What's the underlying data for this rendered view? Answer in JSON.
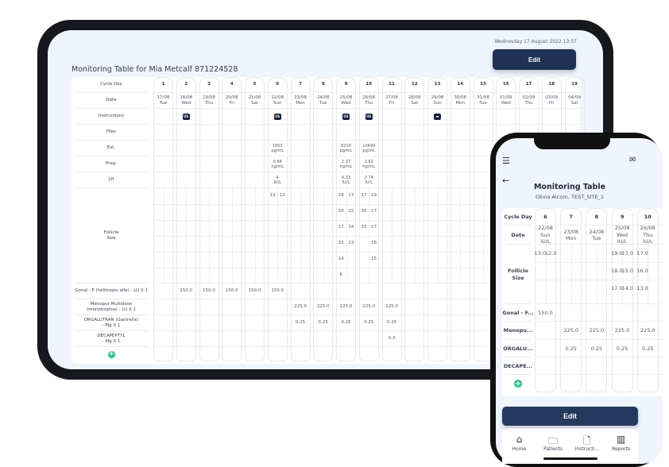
{
  "tablet": {
    "datetime": "Wednesday  17 August 2022  13:57",
    "title": "Monitoring Table for Mia Metcalf  871224528",
    "edit_label": "Edit",
    "row_labels": {
      "cycle": "Cycle Day",
      "date": "Date",
      "instructions": "Instructions",
      "files": "Files",
      "est": "Est.",
      "prog": "Prog.",
      "lh": "LH",
      "follicle": "Follicle\nSize",
      "gonal": "Gonal - F (follitropin alfa) - LU X 1",
      "menopur": "Menopur Multidose\n(menotropins) - LU X 1",
      "orgalutran": "ORGALUTRAN (Ganirelix)\n- Mg X 1",
      "decapeptyl": "DECAPEPTYL\n- Mg X 1"
    },
    "days": [
      {
        "day": "1",
        "date": "17/08",
        "dow": "Tue"
      },
      {
        "day": "2",
        "date": "18/08",
        "dow": "Wed",
        "instruction": "US",
        "gonal": "150.0"
      },
      {
        "day": "3",
        "date": "19/08",
        "dow": "Thu",
        "gonal": "150.0"
      },
      {
        "day": "4",
        "date": "20/08",
        "dow": "Fri",
        "gonal": "150.0"
      },
      {
        "day": "5",
        "date": "21/08",
        "dow": "Sat",
        "gonal": "150.0"
      },
      {
        "day": "6",
        "date": "22/08",
        "dow": "Sun",
        "instruction": "US",
        "est": "1853\npg/mL",
        "prog": "0.84\nng/mL",
        "lh": "4\nIU/L",
        "follicles": [
          [
            "13",
            "12"
          ]
        ],
        "gonal": "150.0"
      },
      {
        "day": "7",
        "date": "23/08",
        "dow": "Mon",
        "menopur": "225.0",
        "orgalutran": "0.25"
      },
      {
        "day": "8",
        "date": "24/08",
        "dow": "Tue",
        "menopur": "225.0",
        "orgalutran": "0.25"
      },
      {
        "day": "9",
        "date": "25/08",
        "dow": "Wed",
        "instruction": "US",
        "est": "6219\npg/mL",
        "prog": "2.37\nng/mL",
        "lh": "4.33\nIU/L",
        "follicles": [
          [
            "19",
            "17"
          ],
          [
            "18",
            "15"
          ],
          [
            "17",
            "14"
          ],
          [
            "15",
            "13"
          ],
          [
            "14",
            ""
          ],
          [
            "6",
            ""
          ]
        ],
        "menopur": "225.0",
        "orgalutran": "0.25"
      },
      {
        "day": "10",
        "date": "26/08",
        "dow": "Thu",
        "instruction": "US",
        "est": "10499\npg/mL",
        "prog": "2.62\nng/mL",
        "lh": "2.74\nIU/L",
        "follicles": [
          [
            "17",
            "19"
          ],
          [
            "16",
            "17"
          ],
          [
            "15",
            "17"
          ],
          [
            "",
            "16"
          ],
          [
            "",
            "15"
          ]
        ],
        "menopur": "225.0",
        "orgalutran": "0.25"
      },
      {
        "day": "11",
        "date": "27/08",
        "dow": "Fri",
        "menopur": "225.0",
        "orgalutran": "0.25",
        "decapeptyl": "0.3"
      },
      {
        "day": "12",
        "date": "28/08",
        "dow": "Sat"
      },
      {
        "day": "13",
        "date": "29/08",
        "dow": "Sun",
        "instruction": "▬"
      },
      {
        "day": "14",
        "date": "30/08",
        "dow": "Mon"
      },
      {
        "day": "15",
        "date": "31/08",
        "dow": "Tue"
      },
      {
        "day": "16",
        "date": "01/09",
        "dow": "Wed"
      },
      {
        "day": "17",
        "date": "02/09",
        "dow": "Thu"
      },
      {
        "day": "18",
        "date": "03/09",
        "dow": "Fri"
      },
      {
        "day": "19",
        "date": "04/09",
        "dow": "Sat"
      }
    ]
  },
  "phone": {
    "title": "Monitoring Table",
    "subtitle": "Olivia Alcorn, TEST_SITE_1",
    "icons": {
      "menu": "hamburger-icon",
      "mail": "mail-icon",
      "back": "back-arrow-icon"
    },
    "edit_label": "Edit",
    "row_labels": {
      "cycle": "Cycle Day",
      "date": "Date",
      "follicle": "Follicle\nSize",
      "gonal": "Gonal - F...",
      "menopur": "Menopu...",
      "orgalutran": "ORGALU...",
      "decapeptyl": "DECAPE..."
    },
    "days": [
      {
        "day": "6",
        "date": "22/08",
        "dow": "Sun",
        "unit": "IU/L",
        "follicles": [
          [
            "13.0",
            "12.0"
          ]
        ],
        "gonal": "150.0"
      },
      {
        "day": "7",
        "date": "23/08",
        "dow": "Mon",
        "menopur": "225.0",
        "orgalutran": "0.25"
      },
      {
        "day": "8",
        "date": "24/08",
        "dow": "Tue",
        "menopur": "225.0",
        "orgalutran": "0.25"
      },
      {
        "day": "9",
        "date": "25/08",
        "dow": "Wed",
        "unit": "IU/L",
        "follicles": [
          [
            "19.0",
            "17.0"
          ],
          [
            "18.0",
            "15.0"
          ],
          [
            "17.0",
            "14.0"
          ]
        ],
        "menopur": "225.0",
        "orgalutran": "0.25"
      },
      {
        "day": "10",
        "date": "26/08",
        "dow": "Thu",
        "unit": "IU/L",
        "follicles": [
          [
            "17.0",
            ""
          ],
          [
            "16.0",
            ""
          ],
          [
            "13.0",
            ""
          ]
        ],
        "menopur": "225.0",
        "orgalutran": "0.25"
      }
    ],
    "nav": [
      {
        "label": "Home",
        "icon": "⌂"
      },
      {
        "label": "Patients",
        "icon": "🗀"
      },
      {
        "label": "Instructi...",
        "icon": "🗋"
      },
      {
        "label": "Reports",
        "icon": "▥"
      }
    ]
  },
  "colors": {
    "primary": "#1f3154",
    "accent": "#1fc48e",
    "background": "#eff4fd"
  }
}
